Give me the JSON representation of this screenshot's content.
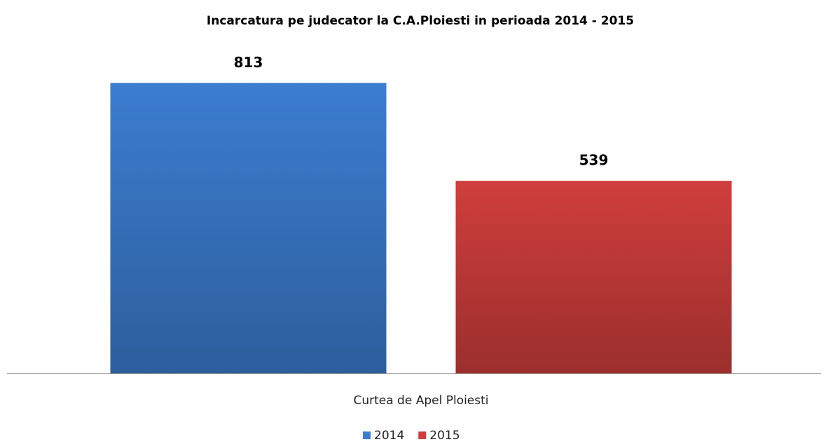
{
  "chart_data": {
    "type": "bar",
    "title": "Incarcatura pe judecator la C.A.Ploiesti in perioada 2014 - 2015",
    "categories": [
      "Curtea de Apel Ploiesti"
    ],
    "series": [
      {
        "name": "2014",
        "color": "#3c7dd0",
        "values": [
          813
        ]
      },
      {
        "name": "2015",
        "color": "#cf3e3c",
        "values": [
          539
        ]
      }
    ],
    "ylim": [
      0,
      900
    ],
    "legend": "bottom"
  }
}
